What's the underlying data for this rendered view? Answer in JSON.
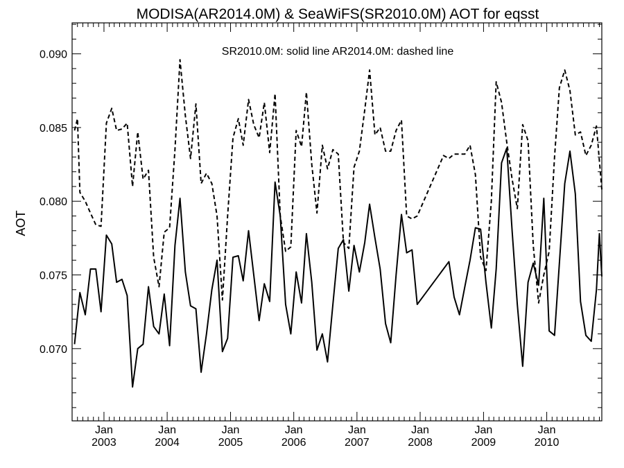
{
  "chart_data": {
    "type": "line",
    "title": "MODISA(AR2014.0M) & SeaWiFS(SR2010.0M)  AOT for eqsst",
    "legend_text": "SR2010.0M: solid line   AR2014.0M: dashed line",
    "ylabel": "AOT",
    "xlabel": "",
    "ylim": [
      0.0651,
      0.0921
    ],
    "xlim": [
      "2002-07-01",
      "2010-11-15"
    ],
    "grid": false,
    "legend_placement": "top-center",
    "y_ticks": [
      "0.070",
      "0.075",
      "0.080",
      "0.085",
      "0.090"
    ],
    "x_ticks": [
      {
        "month": "Jan",
        "year": "2003",
        "date": "2003-01-01"
      },
      {
        "month": "Jan",
        "year": "2004",
        "date": "2004-01-01"
      },
      {
        "month": "Jan",
        "year": "2005",
        "date": "2005-01-01"
      },
      {
        "month": "Jan",
        "year": "2006",
        "date": "2006-01-01"
      },
      {
        "month": "Jan",
        "year": "2007",
        "date": "2007-01-01"
      },
      {
        "month": "Jan",
        "year": "2008",
        "date": "2008-01-01"
      },
      {
        "month": "Jan",
        "year": "2009",
        "date": "2009-01-01"
      },
      {
        "month": "Jan",
        "year": "2010",
        "date": "2010-01-01"
      }
    ],
    "series": [
      {
        "name": "SR2010.0M",
        "style": "solid",
        "points": [
          [
            "2002-07-15",
            0.0703
          ],
          [
            "2002-08-15",
            0.0738
          ],
          [
            "2002-09-15",
            0.0723
          ],
          [
            "2002-10-15",
            0.0754
          ],
          [
            "2002-11-15",
            0.0754
          ],
          [
            "2002-12-15",
            0.0725
          ],
          [
            "2003-01-15",
            0.0777
          ],
          [
            "2003-02-15",
            0.0771
          ],
          [
            "2003-03-15",
            0.0745
          ],
          [
            "2003-04-15",
            0.0747
          ],
          [
            "2003-05-15",
            0.0736
          ],
          [
            "2003-06-15",
            0.0674
          ],
          [
            "2003-07-15",
            0.07
          ],
          [
            "2003-08-15",
            0.0703
          ],
          [
            "2003-09-15",
            0.0742
          ],
          [
            "2003-10-15",
            0.0715
          ],
          [
            "2003-11-15",
            0.071
          ],
          [
            "2003-12-15",
            0.0737
          ],
          [
            "2004-01-15",
            0.0702
          ],
          [
            "2004-02-15",
            0.077
          ],
          [
            "2004-03-15",
            0.0802
          ],
          [
            "2004-04-15",
            0.0752
          ],
          [
            "2004-05-15",
            0.0729
          ],
          [
            "2004-06-15",
            0.0727
          ],
          [
            "2004-07-15",
            0.0684
          ],
          [
            "2004-08-15",
            0.071
          ],
          [
            "2004-09-15",
            0.074
          ],
          [
            "2004-10-15",
            0.076
          ],
          [
            "2004-11-15",
            0.0698
          ],
          [
            "2004-12-15",
            0.0707
          ],
          [
            "2005-01-15",
            0.0762
          ],
          [
            "2005-02-15",
            0.0763
          ],
          [
            "2005-03-15",
            0.0746
          ],
          [
            "2005-04-15",
            0.078
          ],
          [
            "2005-05-15",
            0.075
          ],
          [
            "2005-06-15",
            0.0719
          ],
          [
            "2005-07-15",
            0.0744
          ],
          [
            "2005-08-15",
            0.0732
          ],
          [
            "2005-09-15",
            0.0813
          ],
          [
            "2005-10-15",
            0.079
          ],
          [
            "2005-11-15",
            0.073
          ],
          [
            "2005-12-15",
            0.071
          ],
          [
            "2006-01-15",
            0.0752
          ],
          [
            "2006-02-15",
            0.0731
          ],
          [
            "2006-03-15",
            0.0778
          ],
          [
            "2006-04-15",
            0.0745
          ],
          [
            "2006-05-15",
            0.0699
          ],
          [
            "2006-06-15",
            0.071
          ],
          [
            "2006-07-15",
            0.0691
          ],
          [
            "2006-08-15",
            0.073
          ],
          [
            "2006-09-15",
            0.0768
          ],
          [
            "2006-10-15",
            0.0774
          ],
          [
            "2006-11-15",
            0.0739
          ],
          [
            "2006-12-15",
            0.077
          ],
          [
            "2007-01-15",
            0.0752
          ],
          [
            "2007-02-15",
            0.0772
          ],
          [
            "2007-03-15",
            0.0798
          ],
          [
            "2007-04-15",
            0.0775
          ],
          [
            "2007-05-15",
            0.0754
          ],
          [
            "2007-06-15",
            0.0717
          ],
          [
            "2007-07-15",
            0.0704
          ],
          [
            "2007-08-15",
            0.075
          ],
          [
            "2007-09-15",
            0.0791
          ],
          [
            "2007-10-15",
            0.0765
          ],
          [
            "2007-11-15",
            0.0767
          ],
          [
            "2007-12-15",
            0.073
          ],
          [
            "2008-06-15",
            0.0759
          ],
          [
            "2008-07-15",
            0.0735
          ],
          [
            "2008-08-15",
            0.0723
          ],
          [
            "2008-09-15",
            0.0742
          ],
          [
            "2008-10-15",
            0.076
          ],
          [
            "2008-11-15",
            0.0782
          ],
          [
            "2008-12-15",
            0.0781
          ],
          [
            "2009-01-15",
            0.0745
          ],
          [
            "2009-02-15",
            0.0714
          ],
          [
            "2009-03-15",
            0.0754
          ],
          [
            "2009-04-15",
            0.0826
          ],
          [
            "2009-05-15",
            0.0836
          ],
          [
            "2009-06-15",
            0.078
          ],
          [
            "2009-07-15",
            0.073
          ],
          [
            "2009-08-15",
            0.0688
          ],
          [
            "2009-09-15",
            0.0745
          ],
          [
            "2009-10-15",
            0.0758
          ],
          [
            "2009-11-15",
            0.0743
          ],
          [
            "2009-12-15",
            0.0802
          ],
          [
            "2010-01-15",
            0.0712
          ],
          [
            "2010-02-15",
            0.0709
          ],
          [
            "2010-03-15",
            0.0758
          ],
          [
            "2010-04-15",
            0.0812
          ],
          [
            "2010-05-15",
            0.0834
          ],
          [
            "2010-06-15",
            0.0805
          ],
          [
            "2010-07-15",
            0.0732
          ],
          [
            "2010-08-15",
            0.0709
          ],
          [
            "2010-09-15",
            0.0705
          ],
          [
            "2010-10-15",
            0.074
          ],
          [
            "2010-11-01",
            0.0778
          ],
          [
            "2010-11-15",
            0.0749
          ]
        ]
      },
      {
        "name": "AR2014.0M",
        "style": "dashed",
        "points": [
          [
            "2002-07-15",
            0.0848
          ],
          [
            "2002-08-01",
            0.0856
          ],
          [
            "2002-08-15",
            0.0806
          ],
          [
            "2002-09-15",
            0.08
          ],
          [
            "2002-10-15",
            0.0792
          ],
          [
            "2002-11-15",
            0.0784
          ],
          [
            "2002-12-15",
            0.0783
          ],
          [
            "2003-01-15",
            0.0853
          ],
          [
            "2003-02-15",
            0.0863
          ],
          [
            "2003-03-15",
            0.0848
          ],
          [
            "2003-04-15",
            0.0849
          ],
          [
            "2003-05-15",
            0.0853
          ],
          [
            "2003-06-15",
            0.081
          ],
          [
            "2003-07-15",
            0.0847
          ],
          [
            "2003-08-15",
            0.0815
          ],
          [
            "2003-09-15",
            0.0821
          ],
          [
            "2003-10-15",
            0.0762
          ],
          [
            "2003-11-15",
            0.0742
          ],
          [
            "2003-12-15",
            0.0779
          ],
          [
            "2004-01-15",
            0.0782
          ],
          [
            "2004-02-15",
            0.0835
          ],
          [
            "2004-03-15",
            0.0896
          ],
          [
            "2004-04-15",
            0.0858
          ],
          [
            "2004-05-15",
            0.0829
          ],
          [
            "2004-06-15",
            0.0866
          ],
          [
            "2004-07-15",
            0.0812
          ],
          [
            "2004-08-15",
            0.0819
          ],
          [
            "2004-09-15",
            0.0812
          ],
          [
            "2004-10-15",
            0.079
          ],
          [
            "2004-11-15",
            0.0733
          ],
          [
            "2004-12-15",
            0.079
          ],
          [
            "2005-01-15",
            0.0843
          ],
          [
            "2005-02-15",
            0.0856
          ],
          [
            "2005-03-15",
            0.0838
          ],
          [
            "2005-04-15",
            0.0869
          ],
          [
            "2005-05-15",
            0.0852
          ],
          [
            "2005-06-15",
            0.0843
          ],
          [
            "2005-07-15",
            0.0867
          ],
          [
            "2005-08-15",
            0.0833
          ],
          [
            "2005-09-15",
            0.0873
          ],
          [
            "2005-10-15",
            0.079
          ],
          [
            "2005-11-15",
            0.0766
          ],
          [
            "2005-12-15",
            0.0769
          ],
          [
            "2006-01-15",
            0.0848
          ],
          [
            "2006-02-15",
            0.0837
          ],
          [
            "2006-03-15",
            0.0874
          ],
          [
            "2006-04-15",
            0.0825
          ],
          [
            "2006-05-15",
            0.0792
          ],
          [
            "2006-06-15",
            0.0838
          ],
          [
            "2006-07-15",
            0.0822
          ],
          [
            "2006-08-15",
            0.0835
          ],
          [
            "2006-09-15",
            0.0832
          ],
          [
            "2006-10-15",
            0.0772
          ],
          [
            "2006-11-15",
            0.0768
          ],
          [
            "2006-12-15",
            0.0823
          ],
          [
            "2007-01-15",
            0.0834
          ],
          [
            "2007-02-15",
            0.0862
          ],
          [
            "2007-03-15",
            0.0889
          ],
          [
            "2007-04-15",
            0.0845
          ],
          [
            "2007-05-15",
            0.085
          ],
          [
            "2007-06-15",
            0.0834
          ],
          [
            "2007-07-15",
            0.0834
          ],
          [
            "2007-08-15",
            0.0848
          ],
          [
            "2007-09-15",
            0.0855
          ],
          [
            "2007-10-15",
            0.079
          ],
          [
            "2007-11-15",
            0.0788
          ],
          [
            "2007-12-15",
            0.079
          ],
          [
            "2008-05-15",
            0.0831
          ],
          [
            "2008-06-15",
            0.0829
          ],
          [
            "2008-07-15",
            0.0832
          ],
          [
            "2008-08-15",
            0.0832
          ],
          [
            "2008-09-15",
            0.0832
          ],
          [
            "2008-10-15",
            0.0838
          ],
          [
            "2008-11-15",
            0.0818
          ],
          [
            "2008-12-15",
            0.0762
          ],
          [
            "2009-01-15",
            0.0753
          ],
          [
            "2009-02-15",
            0.08
          ],
          [
            "2009-03-15",
            0.0881
          ],
          [
            "2009-04-15",
            0.0867
          ],
          [
            "2009-05-15",
            0.084
          ],
          [
            "2009-06-15",
            0.0815
          ],
          [
            "2009-07-15",
            0.0795
          ],
          [
            "2009-08-15",
            0.0852
          ],
          [
            "2009-09-15",
            0.0841
          ],
          [
            "2009-10-15",
            0.077
          ],
          [
            "2009-11-15",
            0.0731
          ],
          [
            "2009-12-15",
            0.075
          ],
          [
            "2010-01-15",
            0.0766
          ],
          [
            "2010-02-15",
            0.083
          ],
          [
            "2010-03-15",
            0.0877
          ],
          [
            "2010-04-15",
            0.0889
          ],
          [
            "2010-05-15",
            0.0875
          ],
          [
            "2010-06-15",
            0.0845
          ],
          [
            "2010-07-15",
            0.0847
          ],
          [
            "2010-08-15",
            0.0831
          ],
          [
            "2010-09-15",
            0.0838
          ],
          [
            "2010-10-15",
            0.0851
          ],
          [
            "2010-11-15",
            0.0808
          ]
        ]
      }
    ]
  }
}
